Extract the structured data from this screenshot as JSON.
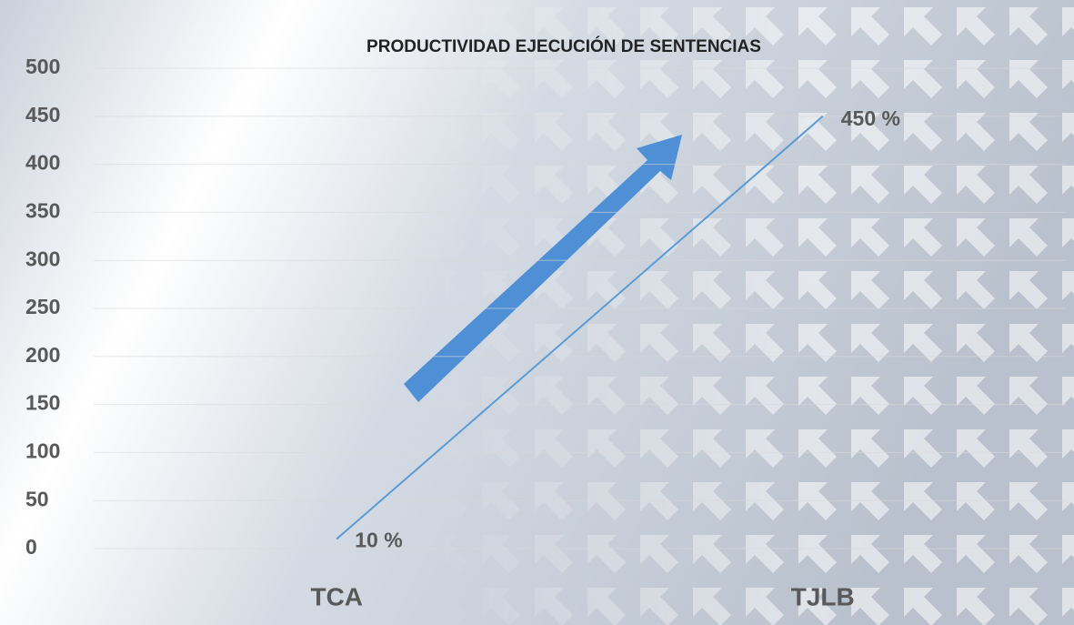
{
  "chart_data": {
    "type": "line",
    "title": "PRODUCTIVIDAD EJECUCIÓN DE SENTENCIAS",
    "categories": [
      "TCA",
      "TJLB"
    ],
    "values": [
      10,
      450
    ],
    "value_labels": [
      "10 %",
      "450 %"
    ],
    "color": "#5b9bd5",
    "ylim": [
      0,
      500
    ],
    "yticks": [
      0,
      50,
      100,
      150,
      200,
      250,
      300,
      350,
      400,
      450,
      500
    ],
    "grid": true
  }
}
